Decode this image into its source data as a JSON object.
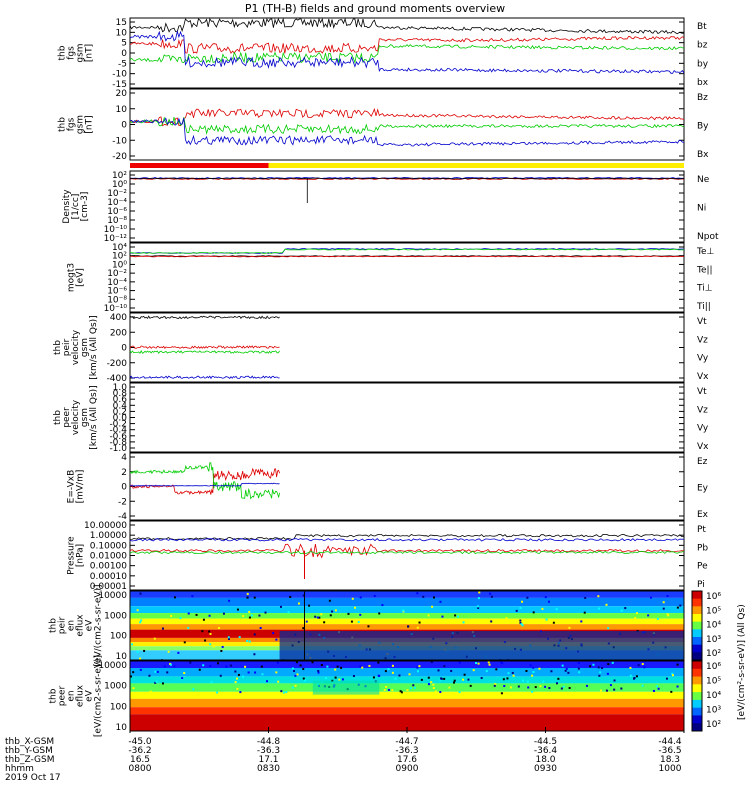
{
  "title": "P1 (TH-B) fields and ground moments overview",
  "colors": {
    "black": "#000000",
    "red": "#dd0000",
    "green": "#00cc00",
    "blue": "#0000cc",
    "yellow": "#ffee00"
  },
  "time_axis": {
    "start_hhmm": "0800",
    "end_hhmm": "1000",
    "date": "2019 Oct 17"
  },
  "chart_data": [
    {
      "type": "line",
      "ylabel": [
        "thb",
        "fgs",
        "gsm",
        "[nT]"
      ],
      "ylim": [
        -15,
        15
      ],
      "yticks": [
        "15",
        "10",
        "5",
        "0",
        "-5",
        "-10",
        "-15"
      ],
      "series": [
        {
          "name": "Bt",
          "color": "#000000"
        },
        {
          "name": "bz",
          "color": "#dd0000"
        },
        {
          "name": "by",
          "color": "#00cc00"
        },
        {
          "name": "bx",
          "color": "#0000cc"
        }
      ]
    },
    {
      "type": "line",
      "ylabel": [
        "thb",
        "fgs",
        "gsm",
        "[nT]"
      ],
      "ylim": [
        -25,
        20
      ],
      "yticks": [
        "20",
        "10",
        "0",
        "-10",
        "-20"
      ],
      "series": [
        {
          "name": "Bz",
          "color": "#dd0000"
        },
        {
          "name": "By",
          "color": "#00cc00"
        },
        {
          "name": "Bx",
          "color": "#0000cc"
        }
      ]
    },
    {
      "type": "line",
      "ylabel": [
        "Density",
        "[1/cc]",
        "[cm-3]"
      ],
      "scale": "log",
      "yticks": [
        "10²",
        "10⁰",
        "10⁻²",
        "10⁻⁴",
        "10⁻⁶",
        "10⁻⁸",
        "10⁻¹⁰",
        "10⁻¹²"
      ],
      "series": [
        {
          "name": "Ne",
          "color": "#dd0000"
        },
        {
          "name": "Ni",
          "color": "#000000"
        },
        {
          "name": "Npot",
          "color": "#0000cc"
        }
      ]
    },
    {
      "type": "line",
      "ylabel": [
        "mogt3",
        "[eV]"
      ],
      "scale": "log",
      "yticks": [
        "10⁴",
        "10²",
        "10⁰",
        "10⁻²",
        "10⁻⁴",
        "10⁻⁶",
        "10⁻⁸",
        "10⁻¹⁰"
      ],
      "series": [
        {
          "name": "Te⊥",
          "color": "#dd0000"
        },
        {
          "name": "Te||",
          "color": "#000000"
        },
        {
          "name": "Ti⊥",
          "color": "#0000cc"
        },
        {
          "name": "Ti||",
          "color": "#00cc00"
        }
      ]
    },
    {
      "type": "line",
      "ylabel": [
        "thb",
        "peir",
        "velocity",
        "gsm",
        "[km/s (All Qs)]"
      ],
      "ylim": [
        -400,
        400
      ],
      "yticks": [
        "400",
        "200",
        "0",
        "-200",
        "-400"
      ],
      "series": [
        {
          "name": "Vt",
          "color": "#000000"
        },
        {
          "name": "Vz",
          "color": "#dd0000"
        },
        {
          "name": "Vy",
          "color": "#00cc00"
        },
        {
          "name": "Vx",
          "color": "#0000cc"
        }
      ]
    },
    {
      "type": "line",
      "ylabel": [
        "thb",
        "peer",
        "velocity",
        "gsm",
        "[km/s (All Qs)]"
      ],
      "ylim": [
        -1,
        1
      ],
      "yticks": [
        "1.0",
        "0.8",
        "0.6",
        "0.4",
        "0.2",
        "0.0",
        "-0.2",
        "-0.4",
        "-0.6",
        "-0.8",
        "-1.0"
      ],
      "series": [
        {
          "name": "Vt",
          "color": "#000000"
        },
        {
          "name": "Vz",
          "color": "#dd0000"
        },
        {
          "name": "Vy",
          "color": "#00cc00"
        },
        {
          "name": "Vx",
          "color": "#0000cc"
        }
      ]
    },
    {
      "type": "line",
      "ylabel": [
        "E=-VxB",
        "[mV/m]"
      ],
      "ylim": [
        -4,
        4
      ],
      "yticks": [
        "4",
        "2",
        "0",
        "-2",
        "-4"
      ],
      "series": [
        {
          "name": "Ez",
          "color": "#dd0000"
        },
        {
          "name": "Ey",
          "color": "#00cc00"
        },
        {
          "name": "Ex",
          "color": "#0000cc"
        }
      ]
    },
    {
      "type": "line",
      "ylabel": [
        "Pressure",
        "[nPa]"
      ],
      "scale": "log",
      "yticks": [
        "10.00000",
        "1.00000",
        "0.10000",
        "0.01000",
        "0.00100",
        "0.00010",
        "0.00001"
      ],
      "series": [
        {
          "name": "Pt",
          "color": "#000000"
        },
        {
          "name": "Pb",
          "color": "#dd0000"
        },
        {
          "name": "Pe",
          "color": "#00cc00"
        },
        {
          "name": "Pi",
          "color": "#0000cc"
        }
      ]
    },
    {
      "type": "heatmap",
      "ylabel": [
        "thb",
        "peir",
        "en",
        "eflux",
        "eV",
        "[eV/(cm2-s-sr-eV)]"
      ],
      "yticks": [
        "10000",
        "1000",
        "100",
        "10"
      ],
      "clim_labels": [
        "10⁶",
        "10⁵",
        "10⁴",
        "10³",
        "10²"
      ]
    },
    {
      "type": "heatmap",
      "ylabel": [
        "thb",
        "peer",
        "en",
        "eflux",
        "eV",
        "[eV/(cm2-s-sr-eV)]"
      ],
      "yticks": [
        "10000",
        "1000",
        "100",
        "10"
      ],
      "clim_labels": [
        "10⁶",
        "10⁵",
        "10⁴",
        "10³",
        "10²"
      ]
    }
  ],
  "colorbar_title": "[eV/(cm²-s-sr-eV)] (All Qs)",
  "orbit": {
    "rows": [
      {
        "label": "thb_X-GSM",
        "values": [
          "-45.0",
          "-44.8",
          "-44.7",
          "-44.5",
          "-44.4"
        ]
      },
      {
        "label": "thb_Y-GSM",
        "values": [
          "-36.2",
          "-36.3",
          "-36.3",
          "-36.4",
          "-36.5"
        ]
      },
      {
        "label": "thb_Z-GSM",
        "values": [
          "16.5",
          "17.1",
          "17.6",
          "18.0",
          "18.3"
        ]
      },
      {
        "label": "hhmm",
        "values": [
          "0800",
          "0830",
          "0900",
          "0930",
          "1000"
        ]
      }
    ],
    "date": "2019 Oct 17"
  }
}
